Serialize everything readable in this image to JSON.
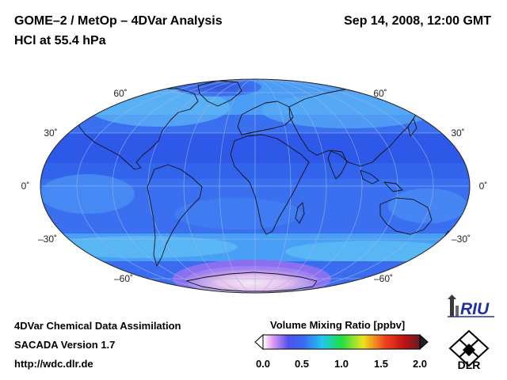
{
  "header": {
    "title": "GOME–2 / MetOp – 4DVar Analysis",
    "datetime": "Sep 14, 2008, 12:00 GMT",
    "subtitle": "HCl at 55.4 hPa"
  },
  "map": {
    "projection": "Hammer (global, equatorial)",
    "lat_labels": {
      "n60": "60˚",
      "n30": "30˚",
      "eq": "0˚",
      "s30": "–30˚",
      "s60": "–60˚"
    },
    "graticule": "30° lat × 30° lon, light grey",
    "field_colors": {
      "dominant": "#3a6cf0",
      "equatorial_band": "#2a52e8",
      "high_latitude": "#4aa0f5",
      "antarctic_max": "#f0d8f0"
    }
  },
  "footer": {
    "line1": "4DVar Chemical Data Assimilation",
    "line2": "SACADA Version 1.7",
    "line3": "http://wdc.dlr.de"
  },
  "colorbar": {
    "title": "Volume Mixing Ratio [ppbv]",
    "ticks": [
      "0.0",
      "0.5",
      "1.0",
      "1.5",
      "2.0"
    ],
    "range": [
      0.0,
      2.0
    ],
    "colors": [
      "#ffffff",
      "#e0a0f0",
      "#3040f0",
      "#20c8f0",
      "#20e040",
      "#f0e020",
      "#f04020",
      "#c01010",
      "#202020"
    ]
  },
  "logos": {
    "riu": "RIU",
    "dlr": "DLR"
  }
}
